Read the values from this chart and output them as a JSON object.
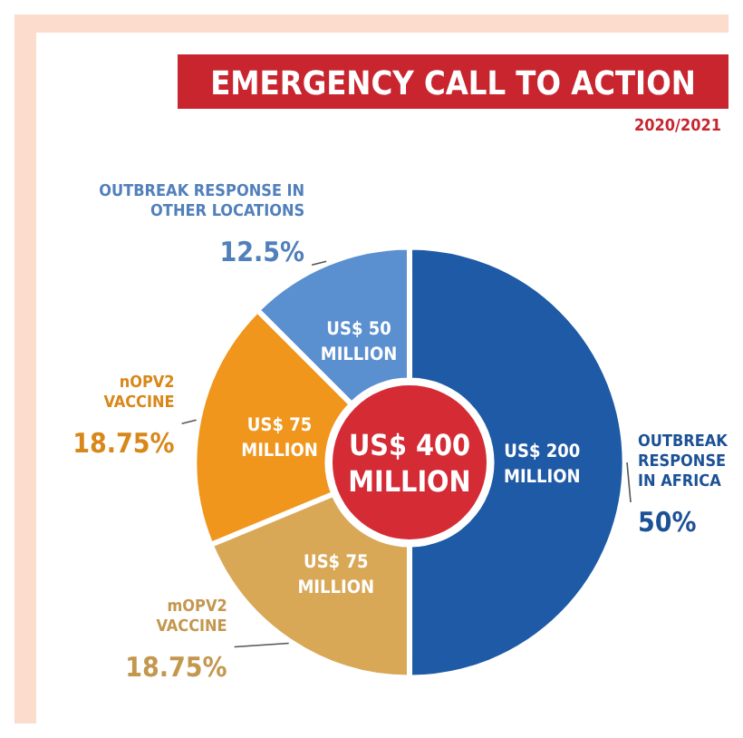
{
  "chart_data": {
    "type": "donut",
    "title": "EMERGENCY CALL TO ACTION",
    "subtitle": "2020/2021",
    "categories": [
      "OUTBREAK RESPONSE IN AFRICA",
      "mOPV2 VACCINE",
      "nOPV2 VACCINE",
      "OUTBREAK RESPONSE IN OTHER LOCATIONS"
    ],
    "values": [
      200,
      75,
      75,
      50
    ],
    "colors": [
      "#1f5aa6",
      "#d9a857",
      "#f0961c",
      "#5a8fd0"
    ],
    "value_labels": [
      "US$ 200 MILLION",
      "US$ 75 MILLION",
      "US$ 75 MILLION",
      "US$ 50 MILLION"
    ],
    "annotations": [
      "50%",
      "18.75%",
      "18.75%",
      "12.5%"
    ],
    "totals": [
      "US$ 400 MILLION"
    ]
  }
}
